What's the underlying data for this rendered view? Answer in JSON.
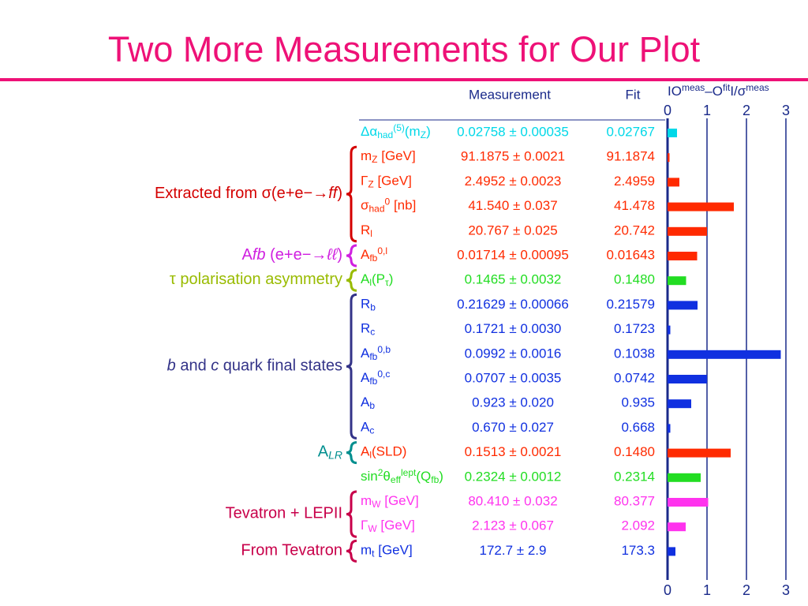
{
  "title": "Two More Measurements for Our Plot",
  "table": {
    "headers": [
      "Measurement",
      "Fit"
    ],
    "sections": [
      {
        "rows": [
          {
            "name": [
              {
                "t": "Δα"
              },
              {
                "t": "had",
                "s": "sub"
              },
              {
                "t": "(5)",
                "s": "sup"
              },
              {
                "t": "(m"
              },
              {
                "t": "Z",
                "s": "sub"
              },
              {
                "t": ")"
              }
            ],
            "measurement": "0.02758 ± 0.00035",
            "fit": "0.02767",
            "color": "#00d8e8",
            "pull": 0.24
          }
        ]
      },
      {
        "label": [
          {
            "t": "Extracted from σ(e+e−→"
          },
          {
            "t": "ff",
            "i": true
          },
          {
            "t": ")"
          }
        ],
        "color": "#d40000",
        "rows": [
          {
            "name": [
              {
                "t": "m"
              },
              {
                "t": "Z",
                "s": "sub"
              },
              {
                "t": " [GeV]"
              }
            ],
            "measurement": "91.1875 ± 0.0021",
            "fit": "91.1874",
            "color": "#ff2a00",
            "pull": 0.05
          },
          {
            "name": [
              {
                "t": "Γ"
              },
              {
                "t": "Z",
                "s": "sub"
              },
              {
                "t": " [GeV]"
              }
            ],
            "measurement": "2.4952 ± 0.0023",
            "fit": "2.4959",
            "color": "#ff2a00",
            "pull": 0.3
          },
          {
            "name": [
              {
                "t": "σ"
              },
              {
                "t": "had",
                "s": "sub"
              },
              {
                "t": "0",
                "s": "sup"
              },
              {
                "t": " [nb]"
              }
            ],
            "measurement": "41.540 ± 0.037",
            "fit": "41.478",
            "color": "#ff2a00",
            "pull": 1.68
          },
          {
            "name": [
              {
                "t": "R"
              },
              {
                "t": "l",
                "s": "sub"
              }
            ],
            "measurement": "20.767 ± 0.025",
            "fit": "20.742",
            "color": "#ff2a00",
            "pull": 1.0
          }
        ]
      },
      {
        "label": [
          {
            "t": "A"
          },
          {
            "t": "fb",
            "i": true
          },
          {
            "t": " (e+e−→"
          },
          {
            "t": "ℓℓ",
            "i": true
          },
          {
            "t": ")"
          }
        ],
        "color": "#d020e0",
        "rows": [
          {
            "name": [
              {
                "t": "A"
              },
              {
                "t": "fb",
                "s": "sub"
              },
              {
                "t": "0,l",
                "s": "sup"
              }
            ],
            "measurement": "0.01714 ± 0.00095",
            "fit": "0.01643",
            "color": "#ff2a00",
            "pull": 0.75
          }
        ]
      },
      {
        "label": [
          {
            "t": "τ polarisation asymmetry"
          }
        ],
        "color": "#99bb00",
        "rows": [
          {
            "name": [
              {
                "t": "A"
              },
              {
                "t": "l",
                "s": "sub"
              },
              {
                "t": "(P"
              },
              {
                "t": "τ",
                "s": "sub"
              },
              {
                "t": ")"
              }
            ],
            "measurement": "0.1465 ± 0.0032",
            "fit": "0.1480",
            "color": "#22dd22",
            "pull": 0.47
          }
        ]
      },
      {
        "label": [
          {
            "t": "b",
            "i": true
          },
          {
            "t": " and "
          },
          {
            "t": "c",
            "i": true
          },
          {
            "t": " quark final states"
          }
        ],
        "color": "#333388",
        "rows": [
          {
            "name": [
              {
                "t": "R"
              },
              {
                "t": "b",
                "s": "sub"
              }
            ],
            "measurement": "0.21629 ± 0.00066",
            "fit": "0.21579",
            "color": "#1030e0",
            "pull": 0.76
          },
          {
            "name": [
              {
                "t": "R"
              },
              {
                "t": "c",
                "s": "sub"
              }
            ],
            "measurement": "0.1721 ± 0.0030",
            "fit": "0.1723",
            "color": "#1030e0",
            "pull": 0.07
          },
          {
            "name": [
              {
                "t": "A"
              },
              {
                "t": "fb",
                "s": "sub"
              },
              {
                "t": "0,b",
                "s": "sup"
              }
            ],
            "measurement": "0.0992 ± 0.0016",
            "fit": "0.1038",
            "color": "#1030e0",
            "pull": 2.87
          },
          {
            "name": [
              {
                "t": "A"
              },
              {
                "t": "fb",
                "s": "sub"
              },
              {
                "t": "0,c",
                "s": "sup"
              }
            ],
            "measurement": "0.0707 ± 0.0035",
            "fit": "0.0742",
            "color": "#1030e0",
            "pull": 1.0
          },
          {
            "name": [
              {
                "t": "A"
              },
              {
                "t": "b",
                "s": "sub"
              }
            ],
            "measurement": "0.923 ± 0.020",
            "fit": "0.935",
            "color": "#1030e0",
            "pull": 0.6
          },
          {
            "name": [
              {
                "t": "A"
              },
              {
                "t": "c",
                "s": "sub"
              }
            ],
            "measurement": "0.670 ± 0.027",
            "fit": "0.668",
            "color": "#1030e0",
            "pull": 0.07
          }
        ]
      },
      {
        "label": [
          {
            "t": "A"
          },
          {
            "t": "LR",
            "s": "sub",
            "i": true
          }
        ],
        "color": "#008f8f",
        "rows": [
          {
            "name": [
              {
                "t": "A"
              },
              {
                "t": "l",
                "s": "sub"
              },
              {
                "t": "(SLD)"
              }
            ],
            "measurement": "0.1513 ± 0.0021",
            "fit": "0.1480",
            "color": "#ff2a00",
            "pull": 1.6
          }
        ]
      },
      {
        "rows": [
          {
            "name": [
              {
                "t": "sin"
              },
              {
                "t": "2",
                "s": "sup"
              },
              {
                "t": "θ"
              },
              {
                "t": "eff",
                "s": "sub"
              },
              {
                "t": "lept",
                "s": "sup"
              },
              {
                "t": "(Q"
              },
              {
                "t": "fb",
                "s": "sub"
              },
              {
                "t": ")"
              }
            ],
            "measurement": "0.2324 ± 0.0012",
            "fit": "0.2314",
            "color": "#22dd22",
            "pull": 0.84
          }
        ]
      },
      {
        "label": [
          {
            "t": "Tevatron + LEPII"
          }
        ],
        "color": "#c8004a",
        "rows": [
          {
            "name": [
              {
                "t": "m"
              },
              {
                "t": "W",
                "s": "sub"
              },
              {
                "t": " [GeV]"
              }
            ],
            "measurement": "80.410 ± 0.032",
            "fit": "80.377",
            "color": "#ff33ee",
            "pull": 1.03
          },
          {
            "name": [
              {
                "t": "Γ"
              },
              {
                "t": "W",
                "s": "sub"
              },
              {
                "t": " [GeV]"
              }
            ],
            "measurement": "2.123 ± 0.067",
            "fit": "2.092",
            "color": "#ff33ee",
            "pull": 0.46
          }
        ]
      },
      {
        "label": [
          {
            "t": "From Tevatron"
          }
        ],
        "color": "#c8004a",
        "rows": [
          {
            "name": [
              {
                "t": "m"
              },
              {
                "t": "t",
                "s": "sub"
              },
              {
                "t": " [GeV]"
              }
            ],
            "measurement": "172.7 ± 2.9",
            "fit": "173.3",
            "color": "#1030e0",
            "pull": 0.2
          }
        ]
      }
    ]
  },
  "chart_data": {
    "type": "bar",
    "title": [
      {
        "t": "IO"
      },
      {
        "t": "meas",
        "s": "sup"
      },
      {
        "t": "–O"
      },
      {
        "t": "fit",
        "s": "sup"
      },
      {
        "t": "I/σ"
      },
      {
        "t": "meas",
        "s": "sup"
      }
    ],
    "xlim": [
      0,
      3
    ],
    "xticks": [
      0,
      1,
      2,
      3
    ],
    "axis_color": "#1a2a8a"
  }
}
